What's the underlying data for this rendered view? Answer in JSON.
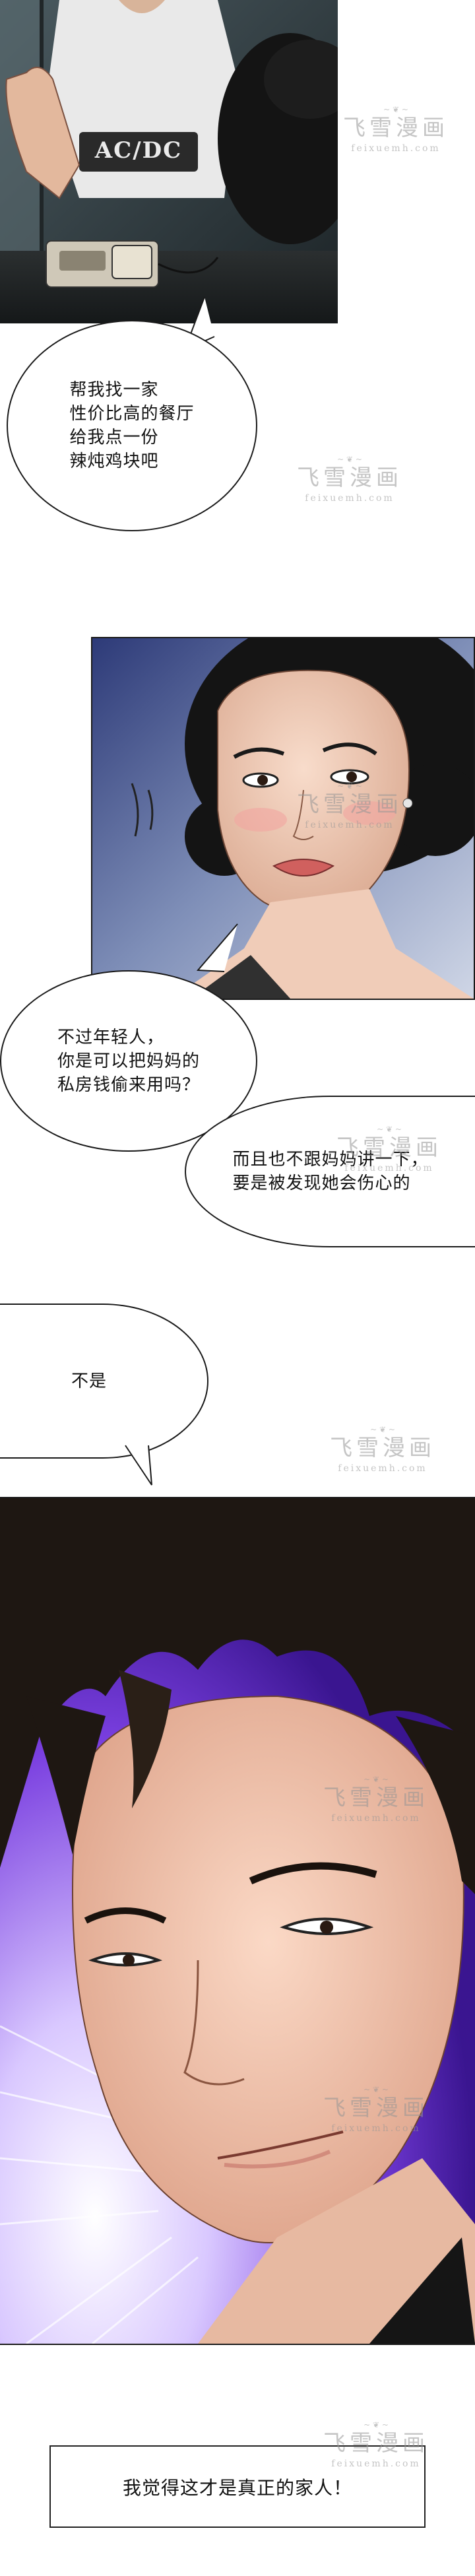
{
  "panel1": {
    "shirt_logo": "AC/DC"
  },
  "bubble1": {
    "text": "帮我找一家\n性价比高的餐厅\n给我点一份\n辣炖鸡块吧"
  },
  "bubble2": {
    "text": "不过年轻人，\n你是可以把妈妈的\n私房钱偷来用吗？"
  },
  "bubble3": {
    "text": "而且也不跟妈妈讲一下，\n要是被发现她会伤心的"
  },
  "bubble4": {
    "text": "不是"
  },
  "caption": {
    "text": "我觉得这才是真正的家人！"
  },
  "watermark": {
    "cn": "飞雪漫画",
    "en": "feixuemh.com",
    "orn": "~ ❦ ~"
  }
}
